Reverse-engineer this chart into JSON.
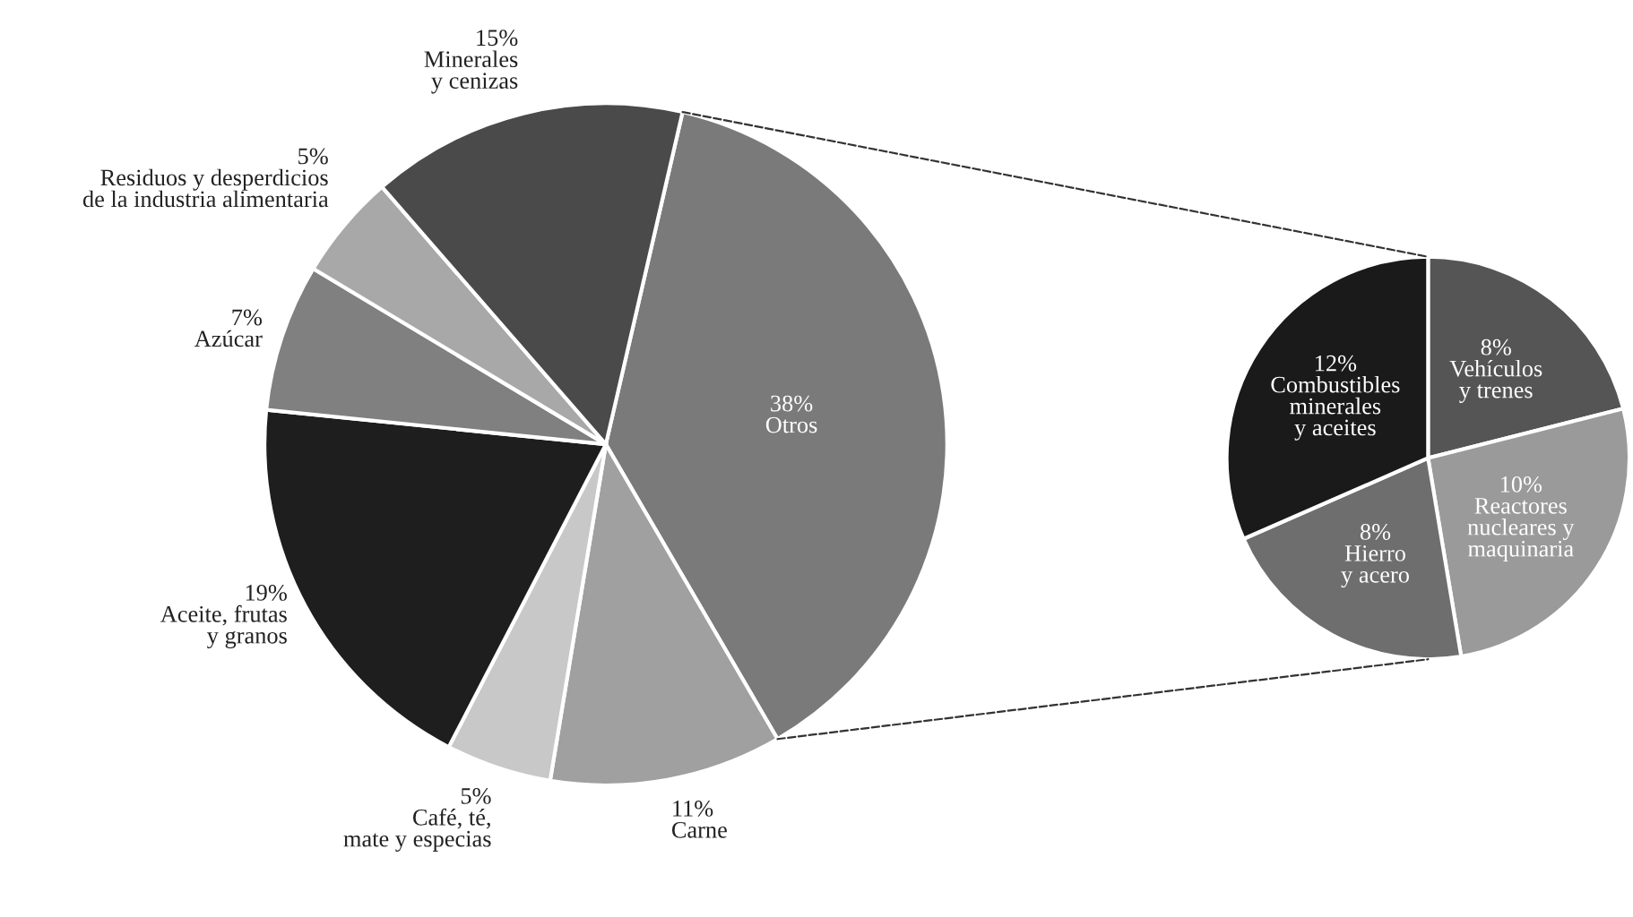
{
  "chart_data": [
    {
      "type": "pie",
      "categories": [
        "Otros",
        "Carne",
        "Café, té,\nmate y especias",
        "Aceite, frutas\ny granos",
        "Azúcar",
        "Residuos y desperdicios\nde la industria alimentaria",
        "Minerales\ny cenizas"
      ],
      "values": [
        38,
        11,
        5,
        19,
        7,
        5,
        15
      ],
      "value_labels": [
        "38%",
        "11%",
        "5%",
        "19%",
        "7%",
        "5%",
        "15%"
      ],
      "colors": [
        "#7a7a7a",
        "#a0a0a0",
        "#c8c8c8",
        "#1e1e1e",
        "#808080",
        "#a8a8a8",
        "#4a4a4a"
      ]
    },
    {
      "type": "pie",
      "categories": [
        "Vehículos\ny trenes",
        "Reactores\nnucleares y\nmaquinaria",
        "Hierro\ny acero",
        "Combustibles\nminerales\ny aceites"
      ],
      "values": [
        8,
        10,
        8,
        12
      ],
      "value_labels": [
        "8%",
        "10%",
        "8%",
        "12%"
      ],
      "colors": [
        "#555555",
        "#9a9a9a",
        "#6e6e6e",
        "#1a1a1a"
      ]
    }
  ]
}
